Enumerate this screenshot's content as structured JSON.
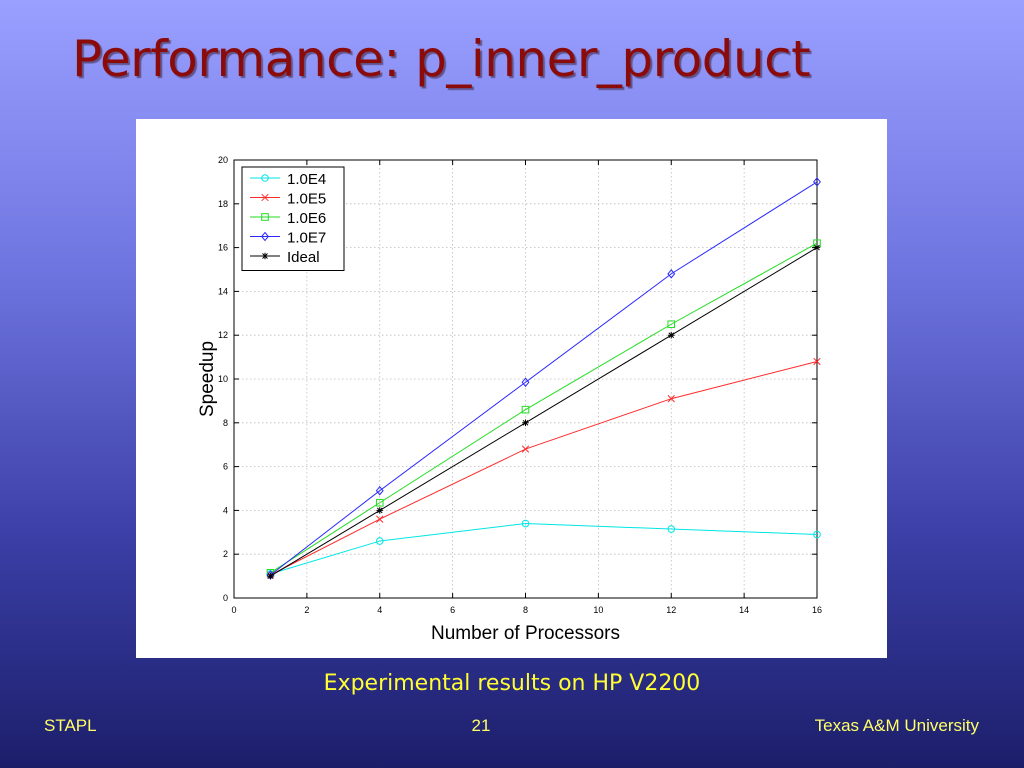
{
  "slide": {
    "title": "Performance: p_inner_product",
    "caption": "Experimental results on HP V2200",
    "footer_left": "STAPL",
    "footer_center": "21",
    "footer_right": "Texas A&M University"
  },
  "colors": {
    "title": "#8b0a0a",
    "caption": "#ffff33",
    "footer": "#ffff66"
  },
  "chart_data": {
    "type": "line",
    "title": "",
    "xlabel": "Number of Processors",
    "ylabel": "Speedup",
    "xlim": [
      0,
      16
    ],
    "ylim": [
      0,
      20
    ],
    "xticks": [
      0,
      2,
      4,
      6,
      8,
      10,
      12,
      14,
      16
    ],
    "yticks": [
      0,
      2,
      4,
      6,
      8,
      10,
      12,
      14,
      16,
      18,
      20
    ],
    "grid": true,
    "legend_position": "top-left",
    "x": [
      1,
      4,
      8,
      12,
      16
    ],
    "series": [
      {
        "name": "1.0E4",
        "color": "#00e5e5",
        "marker": "circle",
        "values": [
          1.1,
          2.6,
          3.4,
          3.15,
          2.9
        ]
      },
      {
        "name": "1.0E5",
        "color": "#ff2a2a",
        "marker": "x",
        "values": [
          1.05,
          3.6,
          6.8,
          9.1,
          10.8
        ]
      },
      {
        "name": "1.0E6",
        "color": "#22dd22",
        "marker": "square",
        "values": [
          1.15,
          4.35,
          8.6,
          12.5,
          16.2
        ]
      },
      {
        "name": "1.0E7",
        "color": "#2a2aff",
        "marker": "diamond",
        "values": [
          1.05,
          4.9,
          9.85,
          14.8,
          19.0
        ]
      },
      {
        "name": "Ideal",
        "color": "#000000",
        "marker": "star",
        "values": [
          1,
          4,
          8,
          12,
          16
        ]
      }
    ]
  }
}
